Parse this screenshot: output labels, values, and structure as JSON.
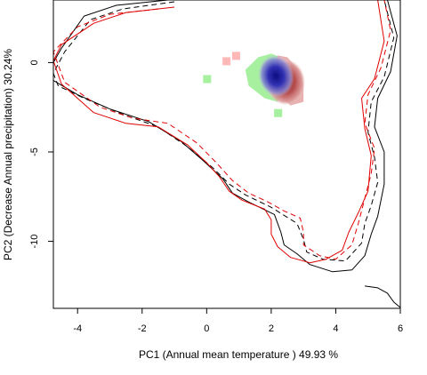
{
  "chart_data": {
    "type": "contour-density",
    "xlabel": "PC1 (Annual mean temperature ) 49.93 %",
    "ylabel": "PC2 (Decrease Annual precipitation) 30.24%",
    "xlim": [
      -4.75,
      6.0
    ],
    "ylim": [
      -13.75,
      3.5
    ],
    "x_ticks": [
      -4,
      -2,
      0,
      2,
      4,
      6
    ],
    "y_ticks": [
      0,
      -5,
      -10
    ],
    "grid": false,
    "colors": {
      "frame": "#000000",
      "contour_black": "#000000",
      "contour_red": "#e00000",
      "green_cells": "#a6f0a0",
      "blue_core": "#1a1aa8",
      "blue_light": "#b0b0e8",
      "red_core": "#a83838",
      "red_light": "#e8b0b0"
    },
    "contours": [
      {
        "color": "black",
        "style": "solid",
        "points": [
          [
            -1.2,
            3.5
          ],
          [
            -2.8,
            3.2
          ],
          [
            -3.8,
            2.6
          ],
          [
            -4.5,
            0.8
          ],
          [
            -4.75,
            0.0
          ],
          [
            -4.75,
            -1.0
          ],
          [
            -4.0,
            -1.8
          ],
          [
            -3.0,
            -2.6
          ],
          [
            -1.8,
            -3.3
          ],
          [
            -0.8,
            -4.4
          ],
          [
            -0.1,
            -5.5
          ],
          [
            0.5,
            -6.5
          ],
          [
            0.8,
            -7.3
          ],
          [
            1.3,
            -7.8
          ],
          [
            2.1,
            -8.5
          ],
          [
            2.3,
            -9.5
          ],
          [
            2.4,
            -10.2
          ],
          [
            2.8,
            -10.7
          ],
          [
            3.2,
            -11.3
          ],
          [
            3.9,
            -11.7
          ],
          [
            4.5,
            -11.6
          ],
          [
            4.9,
            -10.8
          ],
          [
            5.1,
            -9.6
          ],
          [
            5.3,
            -8.6
          ],
          [
            5.5,
            -6.8
          ],
          [
            5.5,
            -5.0
          ],
          [
            5.2,
            -3.6
          ],
          [
            5.3,
            -2.0
          ],
          [
            5.7,
            -0.5
          ],
          [
            5.9,
            1.5
          ],
          [
            5.6,
            3.5
          ]
        ]
      },
      {
        "color": "black",
        "style": "dashed",
        "points": [
          [
            -1.0,
            3.4
          ],
          [
            -2.6,
            3.0
          ],
          [
            -3.6,
            2.4
          ],
          [
            -4.4,
            0.6
          ],
          [
            -4.75,
            -0.6
          ],
          [
            -4.6,
            -1.3
          ],
          [
            -3.8,
            -2.0
          ],
          [
            -2.6,
            -2.9
          ],
          [
            -1.5,
            -3.6
          ],
          [
            -0.6,
            -4.7
          ],
          [
            0.2,
            -5.9
          ],
          [
            0.7,
            -6.8
          ],
          [
            1.2,
            -7.4
          ],
          [
            2.0,
            -8.1
          ],
          [
            2.8,
            -9.0
          ],
          [
            3.0,
            -9.9
          ],
          [
            3.1,
            -10.6
          ],
          [
            3.6,
            -11.0
          ],
          [
            4.3,
            -11.1
          ],
          [
            4.8,
            -10.1
          ],
          [
            4.9,
            -9.0
          ],
          [
            5.1,
            -8.0
          ],
          [
            5.3,
            -6.7
          ],
          [
            5.2,
            -5.3
          ],
          [
            5.0,
            -3.9
          ],
          [
            5.1,
            -2.2
          ],
          [
            5.5,
            -0.8
          ],
          [
            5.8,
            1.4
          ],
          [
            5.5,
            3.5
          ]
        ]
      },
      {
        "color": "red",
        "style": "solid",
        "points": [
          [
            -1.0,
            3.1
          ],
          [
            -2.5,
            2.8
          ],
          [
            -3.5,
            2.2
          ],
          [
            -4.5,
            1.0
          ],
          [
            -4.75,
            0.1
          ],
          [
            -4.5,
            -1.2
          ],
          [
            -3.5,
            -2.8
          ],
          [
            -2.5,
            -3.4
          ],
          [
            -1.5,
            -3.6
          ],
          [
            -0.6,
            -4.6
          ],
          [
            0.0,
            -5.6
          ],
          [
            0.4,
            -6.4
          ],
          [
            0.7,
            -7.2
          ],
          [
            1.1,
            -7.7
          ],
          [
            1.8,
            -8.2
          ],
          [
            2.0,
            -8.8
          ],
          [
            2.0,
            -9.6
          ],
          [
            2.2,
            -10.3
          ],
          [
            2.6,
            -10.9
          ],
          [
            3.2,
            -11.2
          ],
          [
            3.7,
            -11.0
          ],
          [
            4.2,
            -10.5
          ],
          [
            4.4,
            -9.5
          ],
          [
            4.7,
            -8.4
          ],
          [
            5.0,
            -7.2
          ],
          [
            5.1,
            -5.2
          ],
          [
            4.9,
            -3.7
          ],
          [
            4.8,
            -2.0
          ],
          [
            5.2,
            -0.9
          ],
          [
            5.5,
            1.2
          ],
          [
            5.3,
            3.5
          ]
        ]
      },
      {
        "color": "red",
        "style": "dashed",
        "points": [
          [
            -1.5,
            3.0
          ],
          [
            -3.0,
            2.7
          ],
          [
            -4.0,
            2.0
          ],
          [
            -4.75,
            0.6
          ],
          [
            -4.4,
            -1.1
          ],
          [
            -3.3,
            -2.5
          ],
          [
            -2.3,
            -3.1
          ],
          [
            -1.2,
            -3.4
          ],
          [
            -0.3,
            -4.5
          ],
          [
            0.3,
            -5.6
          ],
          [
            0.8,
            -6.6
          ],
          [
            1.3,
            -7.3
          ],
          [
            1.9,
            -7.8
          ],
          [
            2.4,
            -8.3
          ],
          [
            2.9,
            -8.7
          ],
          [
            3.0,
            -9.5
          ],
          [
            3.0,
            -10.2
          ],
          [
            3.5,
            -10.8
          ],
          [
            4.0,
            -11.0
          ],
          [
            4.5,
            -10.2
          ],
          [
            4.7,
            -9.0
          ],
          [
            4.9,
            -7.6
          ],
          [
            5.1,
            -6.2
          ],
          [
            5.2,
            -4.8
          ],
          [
            4.9,
            -3.4
          ],
          [
            5.0,
            -1.8
          ],
          [
            5.4,
            -0.3
          ],
          [
            5.7,
            1.8
          ],
          [
            5.5,
            3.5
          ]
        ]
      },
      {
        "color": "black",
        "style": "solid",
        "points": [
          [
            4.9,
            -12.5
          ],
          [
            5.3,
            -12.6
          ],
          [
            5.6,
            -12.9
          ],
          [
            5.8,
            -13.4
          ],
          [
            6.0,
            -13.7
          ]
        ]
      }
    ],
    "density_cells": [
      {
        "x": 0.6,
        "y": 0.1,
        "color": "#ffb8b8"
      },
      {
        "x": 0.9,
        "y": 0.4,
        "color": "#ffb8b8"
      },
      {
        "x": 0.0,
        "y": -0.9,
        "color": "#a6f0a0"
      },
      {
        "x": 2.2,
        "y": -2.8,
        "color": "#a6f0a0"
      }
    ]
  }
}
